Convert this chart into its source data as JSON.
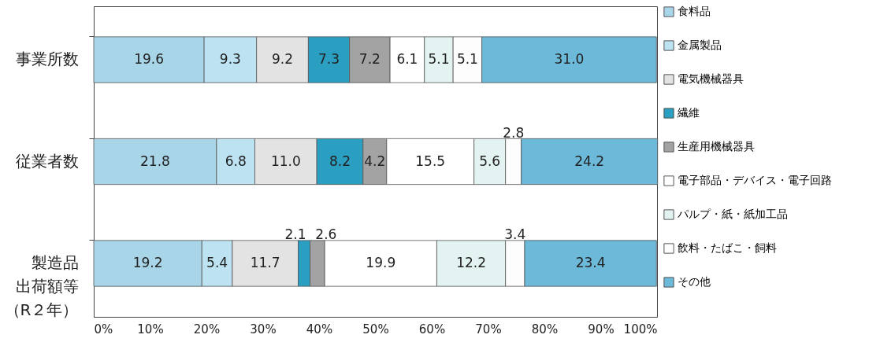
{
  "chart_data": {
    "type": "bar",
    "orientation": "horizontal",
    "stacked": true,
    "legend": "right",
    "grid": false,
    "categories": [
      "事業所数",
      "従業者数",
      "製造品出荷額等（R２年）"
    ],
    "xlim": [
      0,
      100
    ],
    "xticks": [
      {
        "value": 0,
        "label": "0%"
      },
      {
        "value": 10,
        "label": "10%"
      },
      {
        "value": 20,
        "label": "20%"
      },
      {
        "value": 30,
        "label": "30%"
      },
      {
        "value": 40,
        "label": "40%"
      },
      {
        "value": 50,
        "label": "50%"
      },
      {
        "value": 60,
        "label": "60%"
      },
      {
        "value": 70,
        "label": "70%"
      },
      {
        "value": 80,
        "label": "80%"
      },
      {
        "value": 90,
        "label": "90%"
      },
      {
        "value": 100,
        "label": "100%"
      }
    ],
    "series": [
      {
        "name": "食料品",
        "color": "#a9d5e8",
        "values": [
          19.6,
          21.8,
          19.2
        ],
        "value_labels": [
          "19.6",
          "21.8",
          "19.2"
        ]
      },
      {
        "name": "金属製品",
        "color": "#bde2f2",
        "values": [
          9.3,
          6.8,
          5.4
        ],
        "value_labels": [
          "9.3",
          "6.8",
          "5.4"
        ]
      },
      {
        "name": "電気機械器具",
        "color": "#e3e3e3",
        "values": [
          9.2,
          11.0,
          11.7
        ],
        "value_labels": [
          "9.2",
          "11.0",
          "11.7"
        ]
      },
      {
        "name": "繊維",
        "color": "#2b9fc2",
        "values": [
          7.3,
          8.2,
          2.1
        ],
        "value_labels": [
          "7.3",
          "8.2",
          "2.1"
        ]
      },
      {
        "name": "生産用機械器具",
        "color": "#a3a3a3",
        "values": [
          7.2,
          4.2,
          2.6
        ],
        "value_labels": [
          "7.2",
          "4.2",
          "2.6"
        ]
      },
      {
        "name": "電子部品・デバイス・電子回路",
        "color": "#ffffff",
        "values": [
          6.1,
          15.5,
          19.9
        ],
        "value_labels": [
          "6.1",
          "15.5",
          "19.9"
        ]
      },
      {
        "name": "パルプ・紙・紙加工品",
        "color": "#e2f3f1",
        "values": [
          5.1,
          5.6,
          12.2
        ],
        "value_labels": [
          "5.1",
          "5.6",
          "12.2"
        ]
      },
      {
        "name": "飲料・たばこ・飼料",
        "color": "#fdfdfd",
        "values": [
          5.1,
          2.8,
          3.4
        ],
        "value_labels": [
          "5.1",
          "2.8",
          "3.4"
        ]
      },
      {
        "name": "その他",
        "color": "#6db9d9",
        "values": [
          31.0,
          24.2,
          23.4
        ],
        "value_labels": [
          "31.0",
          "24.2",
          "23.4"
        ]
      }
    ]
  }
}
